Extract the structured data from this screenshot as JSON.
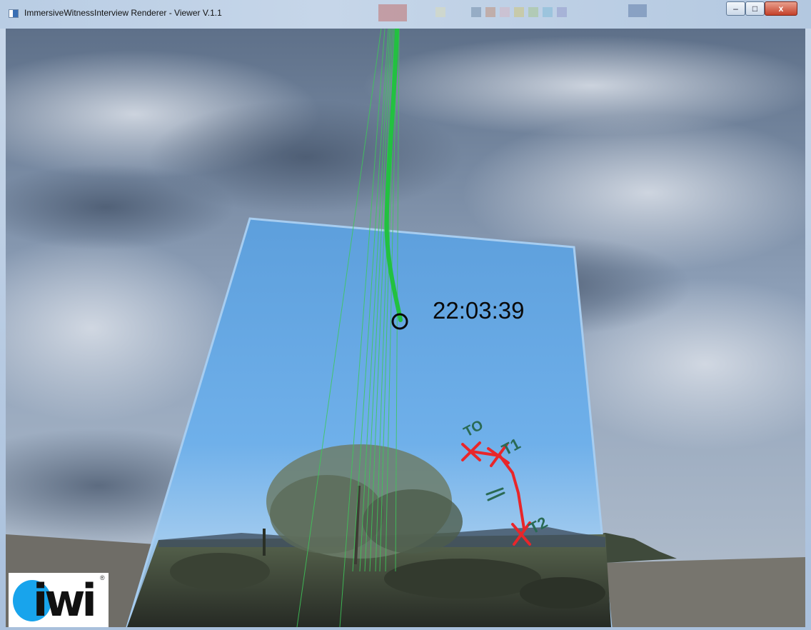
{
  "window": {
    "title": "ImmersiveWitnessInterview Renderer - Viewer V.1.1",
    "controls": {
      "minimize": "–",
      "maximize": "□",
      "close": "x"
    }
  },
  "scene": {
    "timestamp": "22:03:39",
    "sketch_labels": [
      "TO",
      "T1",
      "T2"
    ],
    "colors": {
      "trajectory": "#22c140",
      "sketch_marks": "#e8262a",
      "sketch_text": "#2a6a54"
    }
  },
  "logo": {
    "text": "iwi",
    "registered": "®",
    "accent": "#18a4ec"
  }
}
